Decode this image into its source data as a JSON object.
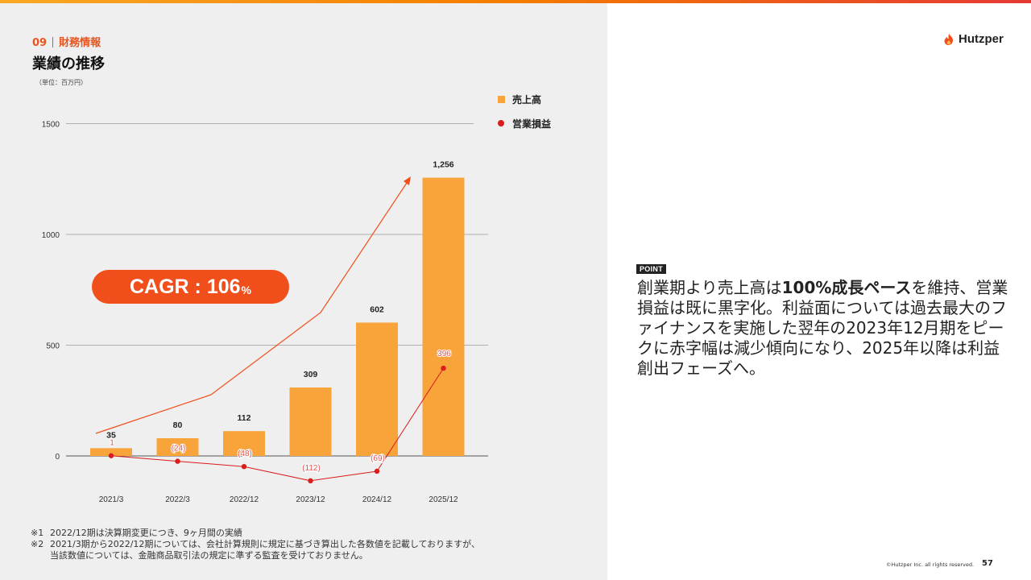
{
  "header": {
    "section_number": "09",
    "section_name": "財務情報",
    "title": "業績の推移",
    "unit_note": "（単位：百万円）",
    "logo_text": "Hutzper"
  },
  "chart_data": {
    "type": "bar",
    "categories": [
      "2021/3",
      "2022/3",
      "2022/12",
      "2023/12",
      "2024/12",
      "2025/12"
    ],
    "series": [
      {
        "name": "売上高",
        "type": "bar",
        "values": [
          35,
          80,
          112,
          309,
          602,
          1256
        ],
        "labels": [
          "35",
          "80",
          "112",
          "309",
          "602",
          "1,256"
        ]
      },
      {
        "name": "営業損益",
        "type": "line",
        "values": [
          1,
          -24,
          -48,
          -112,
          -69,
          396
        ],
        "labels": [
          "1",
          "(24)",
          "(48)",
          "(112)",
          "(69)",
          "396"
        ]
      }
    ],
    "yticks": [
      0,
      500,
      1000,
      1500
    ],
    "ylim": [
      -130,
      1500
    ],
    "grid": true,
    "legend": "top-right",
    "annotation": {
      "cagr_label": "CAGR : 106",
      "cagr_unit": "%"
    }
  },
  "colors": {
    "bar": "#f9a33b",
    "loss_line": "#d91c1c",
    "accent": "#f04e1b"
  },
  "footnotes": [
    {
      "mark": "※1",
      "lines": [
        "2022/12期は決算期変更につき、9ヶ月間の実績"
      ]
    },
    {
      "mark": "※2",
      "lines": [
        "2021/3期から2022/12期については、会社計算規則に規定に基づき算出した各数値を記載しておりますが、",
        "当該数値については、金融商品取引法の規定に準ずる監査を受けておりません。"
      ]
    }
  ],
  "point": {
    "badge": "POINT",
    "text_before": "創業期より売上高は",
    "text_bold": "100%成長ペース",
    "text_after": "を維持、営業損益は既に黒字化。利益面については過去最大のファイナンスを実施した翌年の2023年12月期をピークに赤字幅は減少傾向になり、2025年以降は利益創出フェーズへ。"
  },
  "footer": {
    "copyright": "©Hutzper Inc. all rights reserved.",
    "page_number": "57"
  }
}
